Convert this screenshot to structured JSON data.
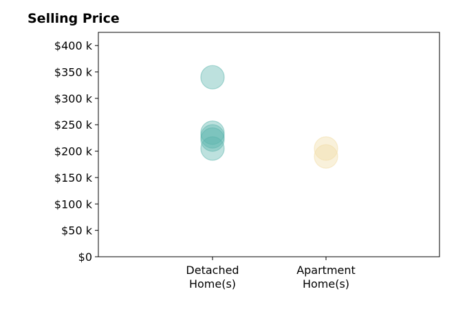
{
  "chart_data": {
    "type": "scatter",
    "title": "Selling Price",
    "categories": [
      "Detached\nHome(s)",
      "Apartment\nHome(s)"
    ],
    "y_tick_labels": [
      "$0",
      "$50 k",
      "$100 k",
      "$150 k",
      "$200 k",
      "$250 k",
      "$300 k",
      "$350 k",
      "$400 k"
    ],
    "y_ticks": [
      0,
      50000,
      100000,
      150000,
      200000,
      250000,
      300000,
      350000,
      400000
    ],
    "ylim": [
      0,
      425000
    ],
    "grid": false,
    "series": [
      {
        "category": "Detached\nHome(s)",
        "color": "#5ab4ac",
        "values": [
          340000,
          235000,
          228000,
          222000,
          205000
        ]
      },
      {
        "category": "Apartment\nHome(s)",
        "color": "#f1dba4",
        "values": [
          205000,
          190000
        ]
      }
    ]
  }
}
